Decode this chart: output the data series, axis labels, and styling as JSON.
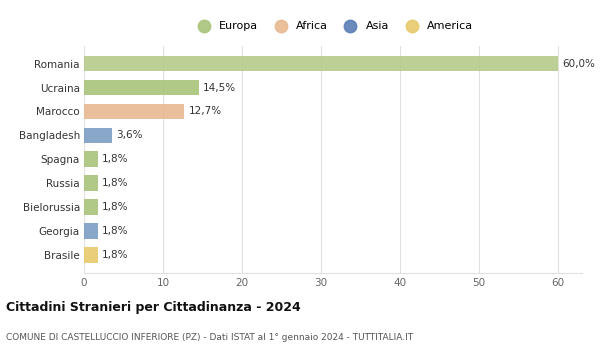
{
  "categories": [
    "Brasile",
    "Georgia",
    "Bielorussia",
    "Russia",
    "Spagna",
    "Bangladesh",
    "Marocco",
    "Ucraina",
    "Romania"
  ],
  "values": [
    1.8,
    1.8,
    1.8,
    1.8,
    1.8,
    3.6,
    12.7,
    14.5,
    60.0
  ],
  "colors": [
    "#e8c96a",
    "#7b9ec4",
    "#a8c47a",
    "#a8c47a",
    "#a8c47a",
    "#7b9ec4",
    "#e8b890",
    "#a8c47a",
    "#b5cb8a"
  ],
  "labels": [
    "1,8%",
    "1,8%",
    "1,8%",
    "1,8%",
    "1,8%",
    "3,6%",
    "12,7%",
    "14,5%",
    "60,0%"
  ],
  "legend": [
    {
      "label": "Europa",
      "color": "#a8c47a"
    },
    {
      "label": "Africa",
      "color": "#e8b890"
    },
    {
      "label": "Asia",
      "color": "#5a7fb5"
    },
    {
      "label": "America",
      "color": "#e8c96a"
    }
  ],
  "xlim": [
    0,
    63
  ],
  "xticks": [
    0,
    10,
    20,
    30,
    40,
    50,
    60
  ],
  "title": "Cittadini Stranieri per Cittadinanza - 2024",
  "subtitle": "COMUNE DI CASTELLUCCIO INFERIORE (PZ) - Dati ISTAT al 1° gennaio 2024 - TUTTITALIA.IT",
  "background_color": "#ffffff",
  "plot_bg_color": "#ffffff",
  "grid_color": "#e0e0e0"
}
